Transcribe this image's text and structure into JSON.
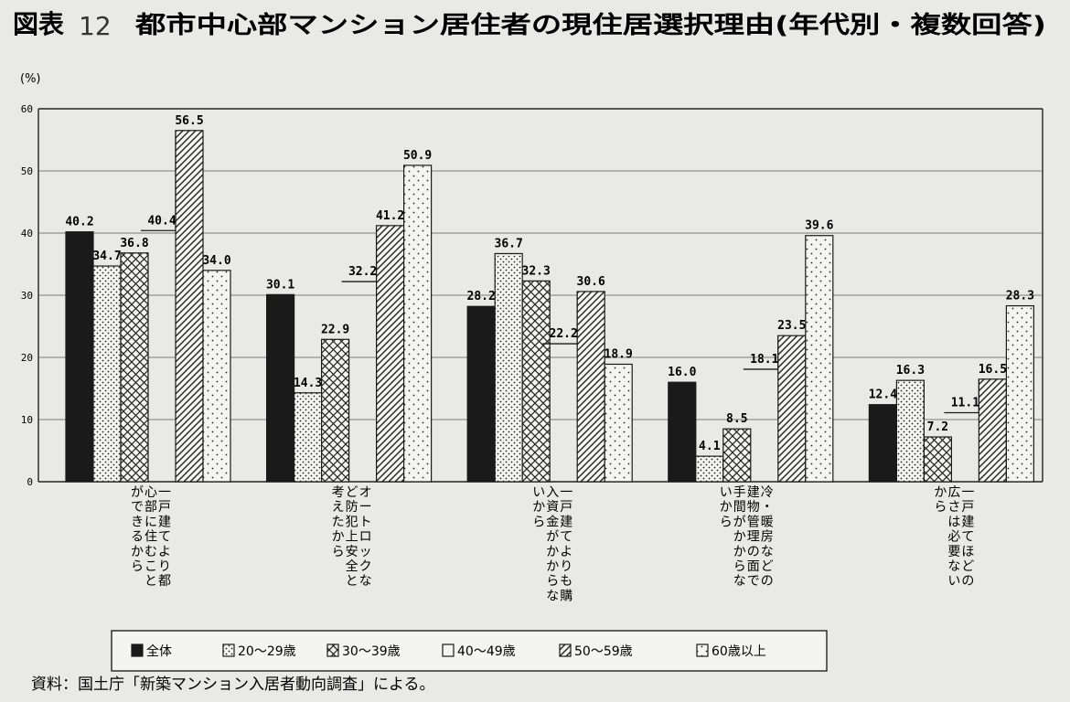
{
  "figure": {
    "number_label": "図表",
    "number": "12",
    "title": "都市中心部マンション居住者の現住居選択理由(年代別・複数回答)",
    "source": "資料：国土庁「新築マンション入居者動向調査」による。"
  },
  "chart_data": {
    "type": "bar",
    "title": "都市中心部マンション居住者の現住居選択理由(年代別・複数回答)",
    "ylabel": "(%)",
    "xlabel": "",
    "ylim": [
      0,
      60
    ],
    "yticks": [
      "0",
      "10",
      "20",
      "30",
      "40",
      "50",
      "60"
    ],
    "grid": true,
    "legend_position": "bottom",
    "categories": [
      {
        "lines": [
          "一戸建てより都",
          "心部に住むこと",
          "ができるから"
        ]
      },
      {
        "lines": [
          "オートロックな",
          "ど防犯上安全と",
          "考えたから"
        ]
      },
      {
        "lines": [
          "一戸建てよりも購",
          "入資金がかからな",
          "いから"
        ]
      },
      {
        "lines": [
          "冷・暖房などの",
          "建物管理の面で",
          "手間がかからな",
          "いから"
        ]
      },
      {
        "lines": [
          "一戸建てほどの",
          "広さは必要ない",
          "から"
        ]
      }
    ],
    "series": [
      {
        "name": "全体",
        "pattern": "solid",
        "values": [
          40.2,
          30.1,
          28.2,
          16.0,
          12.4
        ],
        "labels": [
          "40.2",
          "30.1",
          "28.2",
          "16.0",
          "12.4"
        ]
      },
      {
        "name": "20〜29歳",
        "pattern": "dots",
        "values": [
          34.7,
          14.3,
          36.7,
          4.1,
          16.3
        ],
        "labels": [
          "34.7",
          "14.3",
          "36.7",
          "4.1",
          "16.3"
        ]
      },
      {
        "name": "30〜39歳",
        "pattern": "crosshatch",
        "values": [
          36.8,
          22.9,
          32.3,
          8.5,
          7.2
        ],
        "labels": [
          "36.8",
          "22.9",
          "32.3",
          "8.5",
          "7.2"
        ]
      },
      {
        "name": "40〜49歳",
        "pattern": "blank",
        "values": [
          40.4,
          32.2,
          22.2,
          18.1,
          11.1
        ],
        "labels": [
          "40.4",
          "32.2",
          "22.2",
          "18.1",
          "11.1"
        ]
      },
      {
        "name": "50〜59歳",
        "pattern": "diagonal",
        "values": [
          56.5,
          41.2,
          30.6,
          23.5,
          16.5
        ],
        "labels": [
          "56.5",
          "41.2",
          "30.6",
          "23.5",
          "16.5"
        ]
      },
      {
        "name": "60歳以上",
        "pattern": "sparse-dots",
        "values": [
          34.0,
          50.9,
          18.9,
          39.6,
          28.3
        ],
        "labels": [
          "34.0",
          "50.9",
          "18.9",
          "39.6",
          "28.3"
        ]
      }
    ],
    "colors": {
      "solid": "#1a1a1a",
      "outline": "#1a1a1a",
      "background": "#e9e9e6"
    }
  }
}
